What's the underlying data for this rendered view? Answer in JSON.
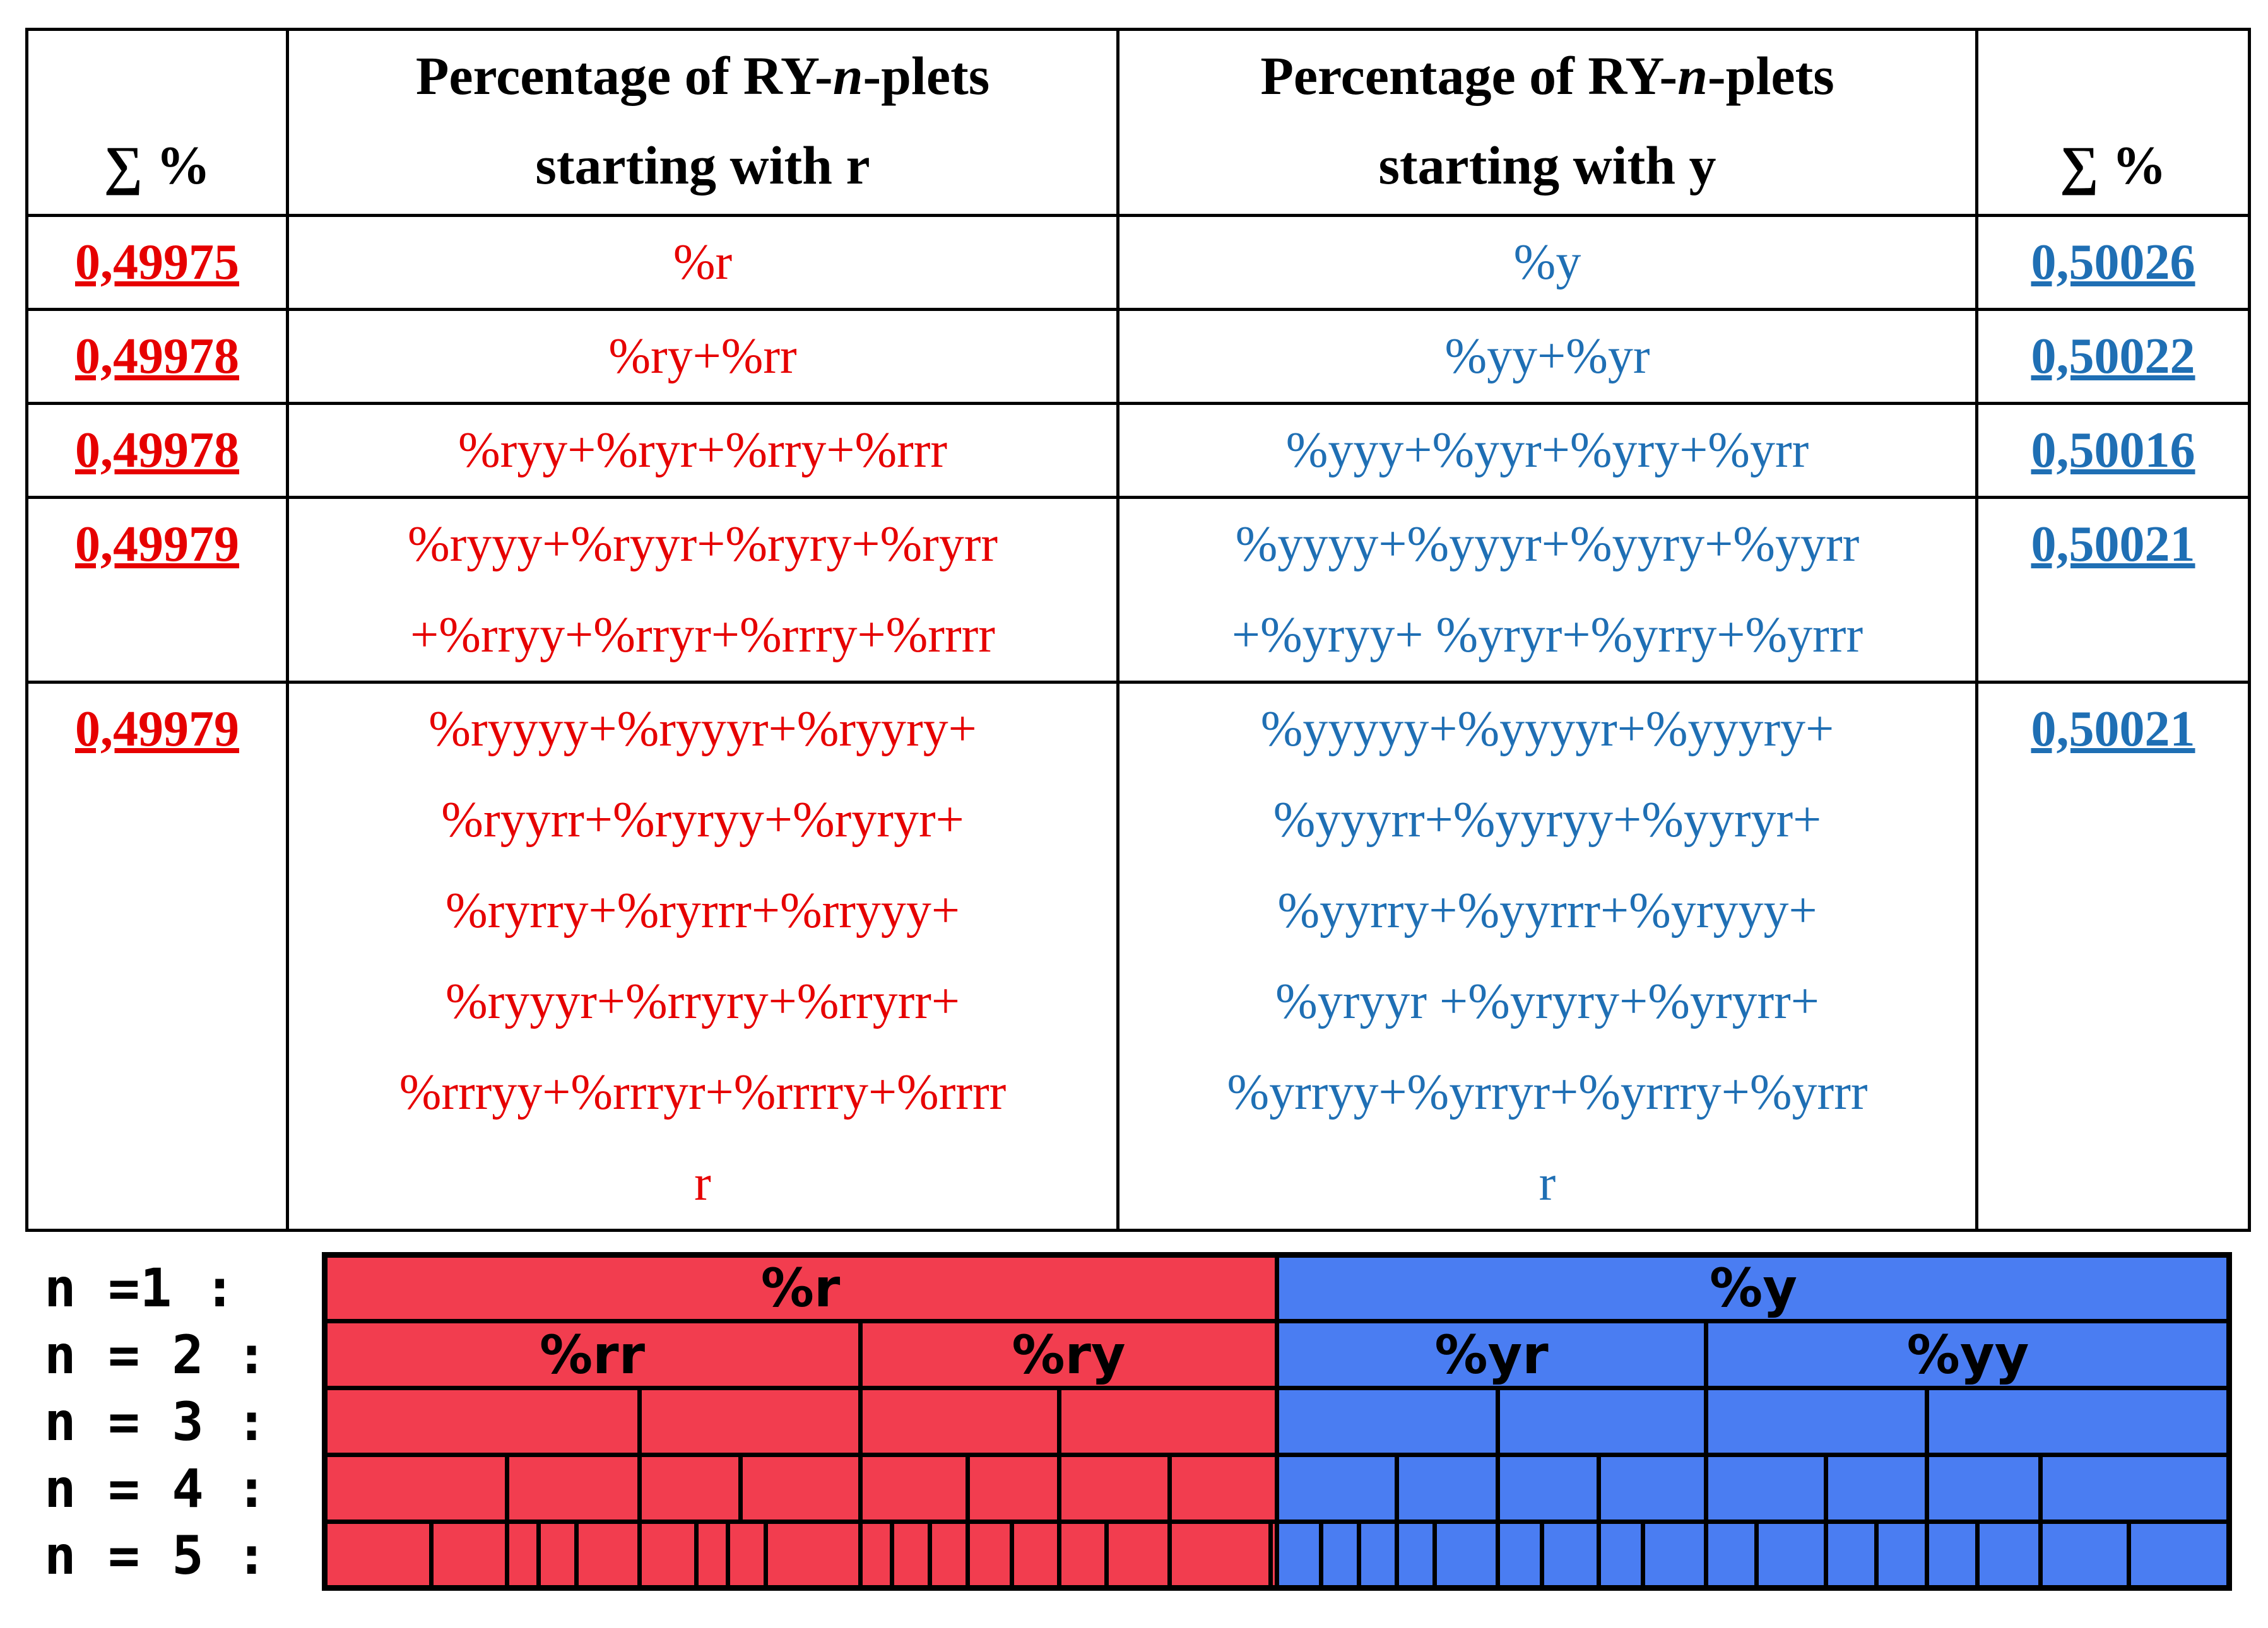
{
  "table": {
    "header": {
      "sum_left": "∑ %",
      "col_r": [
        "Percentage of RY-",
        "n",
        "-plets",
        "starting with r"
      ],
      "col_y": [
        "Percentage of RY-",
        "n",
        "-plets",
        "starting with y"
      ],
      "sum_right": "∑ %"
    },
    "rows": [
      {
        "sum_r": "0,49975",
        "r_lines": [
          "%r"
        ],
        "y_lines": [
          "%y"
        ],
        "sum_y": "0,50026"
      },
      {
        "sum_r": "0,49978",
        "r_lines": [
          "%ry+%rr"
        ],
        "y_lines": [
          "%yy+%yr"
        ],
        "sum_y": "0,50022"
      },
      {
        "sum_r": "0,49978",
        "r_lines": [
          "%ryy+%ryr+%rry+%rrr"
        ],
        "y_lines": [
          "%yyy+%yyr+%yry+%yrr"
        ],
        "sum_y": "0,50016"
      },
      {
        "sum_r": "0,49979",
        "r_lines": [
          "%ryyy+%ryyr+%ryry+%ryrr",
          "+%rryy+%rryr+%rrry+%rrrr"
        ],
        "y_lines": [
          "%yyyy+%yyyr+%yyry+%yyrr",
          "+%yryy+ %yryr+%yrry+%yrrr"
        ],
        "sum_y": "0,50021"
      },
      {
        "sum_r": "0,49979",
        "r_lines": [
          "%ryyyy+%ryyyr+%ryyry+",
          "%ryyrr+%ryryy+%ryryr+",
          "%ryrry+%ryrrr+%rryyy+",
          "%ryyyr+%rryry+%rryrr+",
          "%rrryy+%rrryr+%rrrry+%rrrr",
          "r"
        ],
        "y_lines": [
          "%yyyyy+%yyyyr+%yyyry+",
          "%yyyrr+%yyryy+%yyryr+",
          "%yyrry+%yyrrr+%yryyy+",
          "%yryyr +%yryry+%yryrr+",
          "%yrryy+%yrryr+%yrrry+%yrrr",
          "r"
        ],
        "sum_y": "0,50021"
      }
    ]
  },
  "diagram": {
    "row_labels": [
      "n =1 :",
      "n = 2 :",
      "n = 3 :",
      "n = 4 :",
      "n = 5 :"
    ],
    "level1": [
      "%r",
      "%y"
    ],
    "level2": [
      "%rr",
      "%ry",
      "%yr",
      "%yy"
    ],
    "colors": {
      "r": "#f23d4f",
      "y": "#4a7df2",
      "border": "#000000"
    }
  }
}
